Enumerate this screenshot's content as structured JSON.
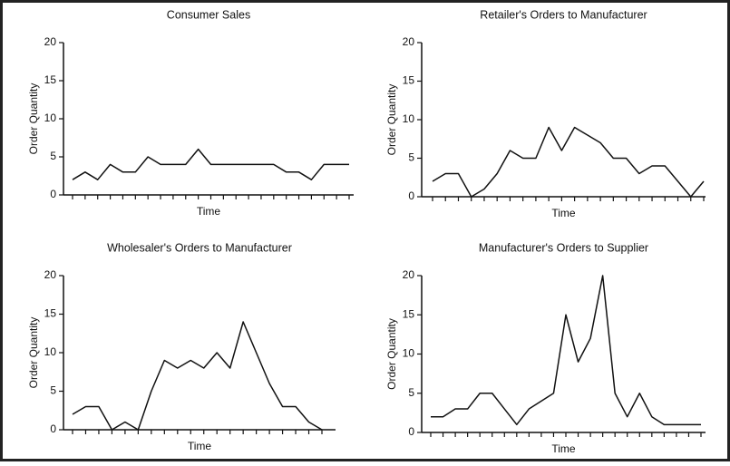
{
  "chart_data": [
    {
      "type": "line",
      "title": "Consumer Sales",
      "xlabel": "Time",
      "ylabel": "Order Quantity",
      "categories": [
        null,
        null,
        null,
        null,
        null,
        null,
        null,
        null,
        null,
        null,
        null,
        null,
        null,
        null,
        null,
        null,
        null,
        null,
        null,
        null,
        null,
        null,
        null
      ],
      "values": [
        2,
        3,
        2,
        4,
        3,
        3,
        5,
        4,
        4,
        4,
        6,
        4,
        4,
        4,
        4,
        4,
        4,
        3,
        3,
        2,
        4,
        4,
        4
      ],
      "color": "#111111",
      "ylim": [
        0,
        20
      ],
      "yticks": [
        0,
        5,
        10,
        15,
        20
      ]
    },
    {
      "type": "line",
      "title": "Retailer's Orders to Manufacturer",
      "xlabel": "Time",
      "ylabel": "Order Quantity",
      "categories": [
        null,
        null,
        null,
        null,
        null,
        null,
        null,
        null,
        null,
        null,
        null,
        null,
        null,
        null,
        null,
        null,
        null,
        null,
        null,
        null,
        null,
        null
      ],
      "values": [
        2,
        3,
        3,
        0,
        1,
        3,
        6,
        5,
        5,
        9,
        6,
        9,
        8,
        7,
        5,
        5,
        3,
        4,
        4,
        2,
        0,
        2
      ],
      "color": "#111111",
      "ylim": [
        0,
        20
      ],
      "yticks": [
        0,
        5,
        10,
        15,
        20
      ]
    },
    {
      "type": "line",
      "title": "Wholesaler's Orders to Manufacturer",
      "xlabel": "Time",
      "ylabel": "Order Quantity",
      "categories": [
        null,
        null,
        null,
        null,
        null,
        null,
        null,
        null,
        null,
        null,
        null,
        null,
        null,
        null,
        null,
        null,
        null,
        null,
        null,
        null
      ],
      "values": [
        2,
        3,
        3,
        0,
        1,
        0,
        5,
        9,
        8,
        9,
        8,
        10,
        8,
        14,
        10,
        6,
        3,
        3,
        1,
        0
      ],
      "color": "#111111",
      "ylim": [
        0,
        20
      ],
      "yticks": [
        0,
        5,
        10,
        15,
        20
      ]
    },
    {
      "type": "line",
      "title": "Manufacturer's Orders to Supplier",
      "xlabel": "Time",
      "ylabel": "Order Quantity",
      "categories": [
        null,
        null,
        null,
        null,
        null,
        null,
        null,
        null,
        null,
        null,
        null,
        null,
        null,
        null,
        null,
        null,
        null,
        null,
        null,
        null,
        null,
        null,
        null
      ],
      "values": [
        2,
        2,
        3,
        3,
        5,
        5,
        3,
        1,
        3,
        4,
        5,
        15,
        9,
        12,
        20,
        5,
        2,
        5,
        2,
        1,
        1,
        1,
        1
      ],
      "color": "#111111",
      "ylim": [
        0,
        20
      ],
      "yticks": [
        0,
        5,
        10,
        15,
        20
      ]
    }
  ]
}
